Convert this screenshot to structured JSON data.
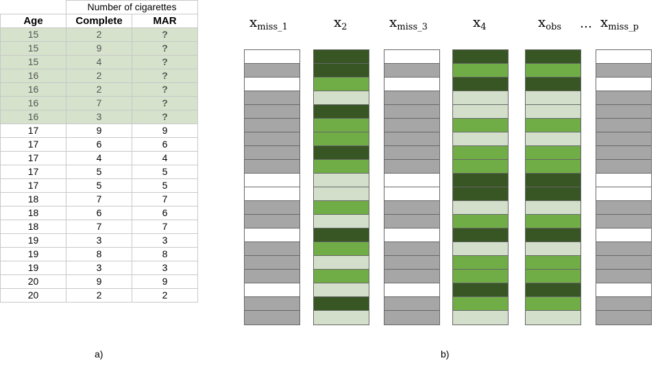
{
  "table": {
    "group_header": "Number of cigarettes",
    "headers": [
      "Age",
      "Complete",
      "MAR"
    ],
    "rows": [
      {
        "age": "15",
        "complete": "2",
        "mar": "?",
        "missing": true
      },
      {
        "age": "15",
        "complete": "9",
        "mar": "?",
        "missing": true
      },
      {
        "age": "15",
        "complete": "4",
        "mar": "?",
        "missing": true
      },
      {
        "age": "16",
        "complete": "2",
        "mar": "?",
        "missing": true
      },
      {
        "age": "16",
        "complete": "2",
        "mar": "?",
        "missing": true
      },
      {
        "age": "16",
        "complete": "7",
        "mar": "?",
        "missing": true
      },
      {
        "age": "16",
        "complete": "3",
        "mar": "?",
        "missing": true
      },
      {
        "age": "17",
        "complete": "9",
        "mar": "9",
        "missing": false
      },
      {
        "age": "17",
        "complete": "6",
        "mar": "6",
        "missing": false
      },
      {
        "age": "17",
        "complete": "4",
        "mar": "4",
        "missing": false
      },
      {
        "age": "17",
        "complete": "5",
        "mar": "5",
        "missing": false
      },
      {
        "age": "17",
        "complete": "5",
        "mar": "5",
        "missing": false
      },
      {
        "age": "18",
        "complete": "7",
        "mar": "7",
        "missing": false
      },
      {
        "age": "18",
        "complete": "6",
        "mar": "6",
        "missing": false
      },
      {
        "age": "18",
        "complete": "7",
        "mar": "7",
        "missing": false
      },
      {
        "age": "19",
        "complete": "3",
        "mar": "3",
        "missing": false
      },
      {
        "age": "19",
        "complete": "8",
        "mar": "8",
        "missing": false
      },
      {
        "age": "19",
        "complete": "3",
        "mar": "3",
        "missing": false
      },
      {
        "age": "20",
        "complete": "9",
        "mar": "9",
        "missing": false
      },
      {
        "age": "20",
        "complete": "2",
        "mar": "2",
        "missing": false
      }
    ],
    "caption": "a)"
  },
  "columns_diagram": {
    "caption": "b)",
    "ellipsis": "…",
    "colors": {
      "missing": "#ffffff",
      "observed_gray": "#a6a6a6",
      "dark_green": "#375623",
      "mid_green": "#70ad47",
      "light_green": "#d3dfcb"
    },
    "columns": [
      {
        "label": "x",
        "sub": "miss_1",
        "cells": [
          "W",
          "G",
          "W",
          "G",
          "G",
          "G",
          "G",
          "G",
          "G",
          "W",
          "W",
          "G",
          "G",
          "W",
          "G",
          "G",
          "G",
          "W",
          "G",
          "G"
        ]
      },
      {
        "label": "x",
        "sub": "2",
        "cells": [
          "D",
          "D",
          "M",
          "L",
          "D",
          "M",
          "M",
          "D",
          "M",
          "L",
          "L",
          "M",
          "L",
          "D",
          "M",
          "L",
          "M",
          "L",
          "D",
          "L"
        ]
      },
      {
        "label": "x",
        "sub": "miss_3",
        "cells": [
          "W",
          "G",
          "W",
          "G",
          "G",
          "G",
          "G",
          "G",
          "G",
          "W",
          "W",
          "G",
          "G",
          "W",
          "G",
          "G",
          "G",
          "W",
          "G",
          "G"
        ]
      },
      {
        "label": "x",
        "sub": "4",
        "cells": [
          "D",
          "M",
          "D",
          "L",
          "L",
          "M",
          "L",
          "M",
          "M",
          "D",
          "D",
          "L",
          "M",
          "D",
          "L",
          "M",
          "M",
          "D",
          "M",
          "L"
        ]
      },
      {
        "label": "x",
        "sub": "obs",
        "cells": [
          "D",
          "M",
          "D",
          "L",
          "L",
          "M",
          "L",
          "M",
          "M",
          "D",
          "D",
          "L",
          "M",
          "D",
          "L",
          "M",
          "M",
          "D",
          "M",
          "L"
        ]
      },
      {
        "label": "x",
        "sub": "miss_p",
        "cells": [
          "W",
          "G",
          "W",
          "G",
          "G",
          "G",
          "G",
          "G",
          "G",
          "W",
          "W",
          "G",
          "G",
          "W",
          "G",
          "G",
          "G",
          "W",
          "G",
          "G"
        ]
      }
    ]
  }
}
